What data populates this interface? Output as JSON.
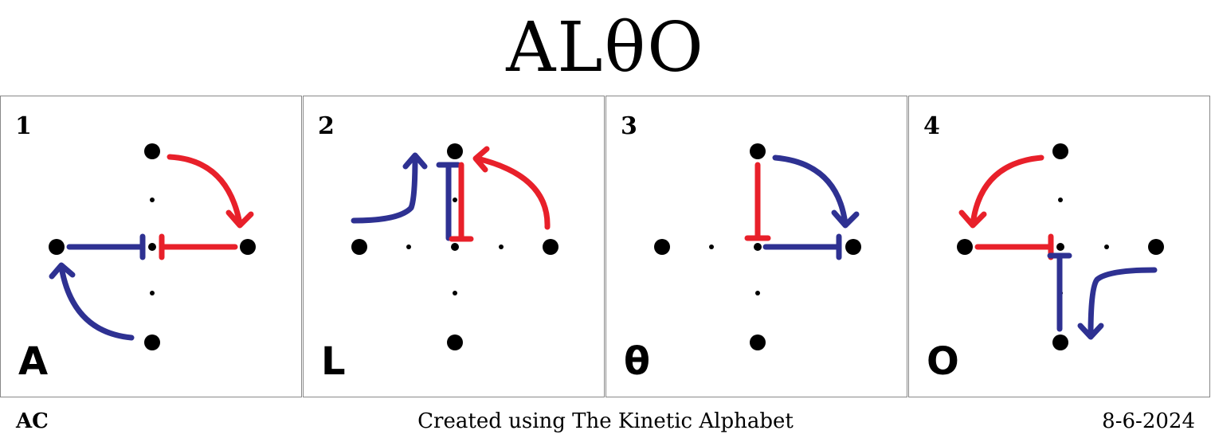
{
  "title": "ALθO",
  "panels": [
    {
      "number": "1",
      "letter": "A"
    },
    {
      "number": "2",
      "letter": "L"
    },
    {
      "number": "3",
      "letter": "θ"
    },
    {
      "number": "4",
      "letter": "O"
    }
  ],
  "footer": {
    "left": "AC",
    "center": "Created using The Kinetic Alphabet",
    "right": "8-6-2024"
  },
  "colors": {
    "red": "#e8202a",
    "blue": "#2e3192",
    "dot": "#000000"
  }
}
